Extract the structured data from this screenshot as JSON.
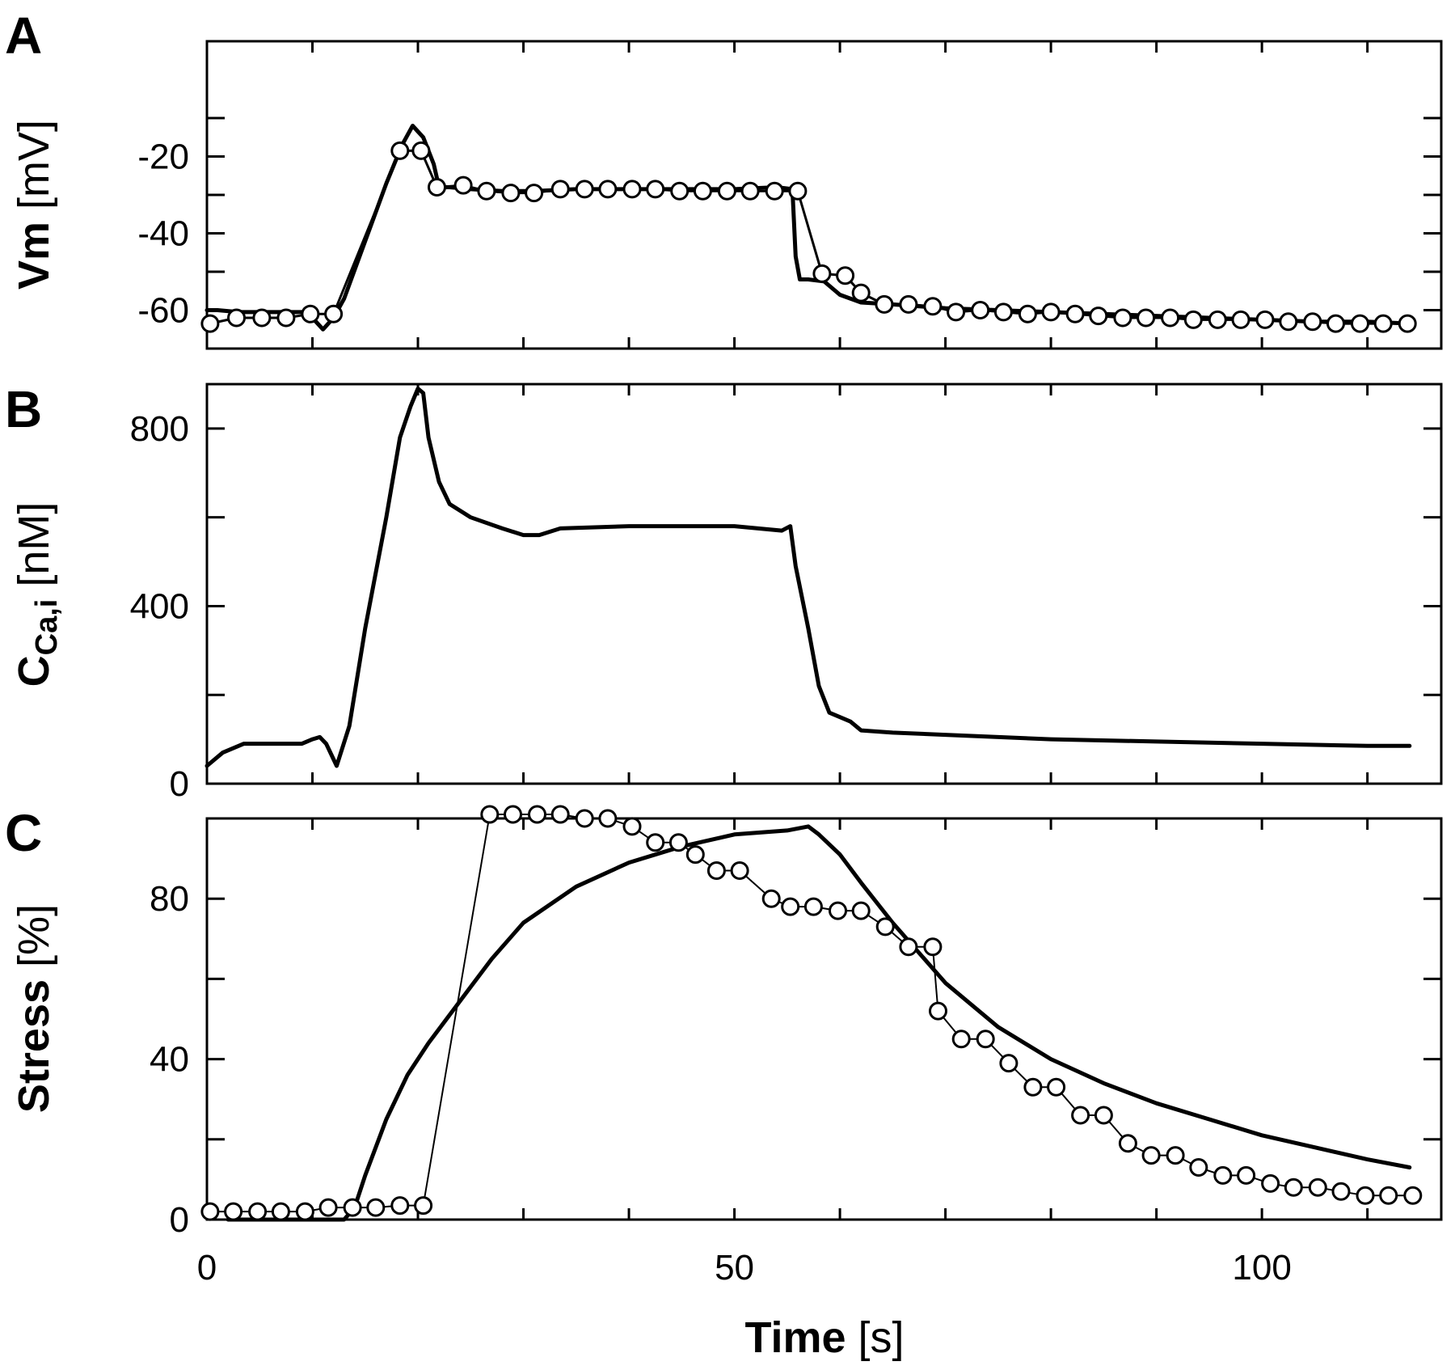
{
  "chart_data": [
    {
      "type": "line",
      "panel": "A",
      "ylabel": "Vm",
      "yunit": "[mV]",
      "xlabel": "",
      "xlim": [
        0,
        117
      ],
      "ylim": [
        -70,
        10
      ],
      "yticks": [
        -20,
        -40,
        -60
      ],
      "yticks_minor": [
        -10,
        -30,
        -50,
        -70
      ],
      "grid": false,
      "series": [
        {
          "name": "Vm (line)",
          "style": "thick-line",
          "x": [
            0,
            1,
            3,
            5,
            7,
            9,
            10,
            11,
            12,
            13,
            15,
            17,
            18.5,
            19.5,
            20.5,
            21.5,
            22,
            23,
            25,
            28,
            31,
            35,
            40,
            45,
            50,
            54,
            55.5,
            55.8,
            56.2,
            57,
            58.5,
            60,
            62,
            65,
            70,
            75,
            80,
            85,
            90,
            95,
            100,
            105,
            110,
            114
          ],
          "y": [
            -60,
            -60,
            -60.5,
            -60.5,
            -60.5,
            -60.5,
            -62,
            -65,
            -62,
            -57,
            -42,
            -27,
            -17,
            -12,
            -15,
            -22,
            -28,
            -28,
            -28.5,
            -29,
            -29,
            -28.5,
            -28.5,
            -28.5,
            -28.5,
            -28,
            -28.5,
            -46,
            -52,
            -52,
            -52.5,
            -56,
            -58,
            -58.5,
            -59.5,
            -60,
            -60.5,
            -61,
            -61.5,
            -62,
            -62.5,
            -63,
            -63,
            -63.5
          ]
        },
        {
          "name": "Vm (measured)",
          "style": "open-circles",
          "x": [
            0.3,
            2.8,
            5.2,
            7.5,
            9.8,
            12.0,
            18.3,
            20.3,
            21.8,
            24.3,
            26.5,
            28.8,
            31.0,
            33.5,
            35.8,
            38.0,
            40.3,
            42.5,
            44.8,
            47.0,
            49.3,
            51.5,
            53.8,
            56.0,
            58.3,
            60.5,
            62.0,
            64.2,
            66.5,
            68.8,
            71.0,
            73.3,
            75.5,
            77.8,
            80.0,
            82.3,
            84.5,
            86.8,
            89.0,
            91.3,
            93.5,
            95.8,
            98.0,
            100.3,
            102.5,
            104.8,
            107.0,
            109.3,
            111.5,
            113.8
          ],
          "y": [
            -63.5,
            -62,
            -62,
            -62,
            -61,
            -61,
            -18.5,
            -18.5,
            -28,
            -27.5,
            -29,
            -29.5,
            -29.5,
            -28.5,
            -28.5,
            -28.5,
            -28.5,
            -28.5,
            -29,
            -29,
            -29,
            -29,
            -29,
            -29,
            -50.5,
            -51,
            -55.5,
            -58.5,
            -58.5,
            -59,
            -60.5,
            -60,
            -60.5,
            -61,
            -60.5,
            -61,
            -61.5,
            -62,
            -62,
            -62,
            -62.5,
            -62.5,
            -62.5,
            -62.5,
            -63,
            -63,
            -63.5,
            -63.5,
            -63.5,
            -63.5
          ]
        }
      ],
      "text": {
        "letter": "A",
        "ytick_labels": [
          "-20",
          "-40",
          "-60"
        ]
      }
    },
    {
      "type": "line",
      "panel": "B",
      "ylabel": "C",
      "ylabel_subscript": "Ca,i",
      "yunit": "[nM]",
      "xlabel": "",
      "xlim": [
        0,
        117
      ],
      "ylim": [
        0,
        900
      ],
      "yticks": [
        0,
        400,
        800
      ],
      "yticks_minor": [
        200,
        600
      ],
      "grid": false,
      "series": [
        {
          "name": "Ca concentration (model)",
          "style": "thick-line",
          "x": [
            0,
            1.5,
            3.5,
            5,
            7,
            9,
            10,
            10.7,
            11.3,
            12.3,
            13.5,
            15,
            17,
            18.3,
            19.3,
            20,
            20.5,
            21,
            22,
            23,
            25,
            28,
            30,
            31.5,
            33.5,
            40,
            50,
            54.5,
            55.3,
            55.8,
            57,
            58,
            59,
            60,
            61,
            62,
            65,
            70,
            80,
            90,
            100,
            110,
            114
          ],
          "y": [
            40,
            70,
            90,
            90,
            90,
            90,
            100,
            105,
            90,
            40,
            130,
            350,
            600,
            780,
            850,
            890,
            880,
            780,
            680,
            630,
            600,
            575,
            560,
            560,
            575,
            580,
            580,
            570,
            580,
            490,
            350,
            220,
            160,
            150,
            140,
            120,
            115,
            110,
            100,
            95,
            90,
            85,
            85
          ]
        }
      ],
      "text": {
        "letter": "B",
        "ytick_labels": [
          "0",
          "400",
          "800"
        ]
      }
    },
    {
      "type": "line",
      "panel": "C",
      "ylabel": "Stress",
      "yunit": "[%]",
      "xlabel": "Time",
      "xunit": "[s]",
      "xlim": [
        0,
        117
      ],
      "ylim": [
        0,
        100
      ],
      "xticks": [
        0,
        50,
        100
      ],
      "xticks_minor": [
        10,
        20,
        30,
        40,
        60,
        70,
        80,
        90,
        110
      ],
      "yticks": [
        0,
        40,
        80
      ],
      "yticks_minor": [
        20,
        60
      ],
      "grid": false,
      "series": [
        {
          "name": "Stress (model)",
          "style": "thick-line",
          "x": [
            2,
            13,
            14,
            15,
            17,
            19,
            21,
            23,
            25,
            27,
            30,
            35,
            40,
            45,
            50,
            55,
            57,
            58,
            60,
            62,
            65,
            70,
            75,
            80,
            85,
            90,
            95,
            100,
            105,
            110,
            114
          ],
          "y": [
            0,
            0,
            3,
            11,
            25,
            36,
            44,
            51,
            58,
            65,
            74,
            83,
            89,
            93,
            96,
            97,
            98,
            96,
            91,
            84,
            74,
            59,
            48,
            40,
            34,
            29,
            25,
            21,
            18,
            15,
            13
          ]
        },
        {
          "name": "Stress (measured)",
          "style": "open-circles-thin-line",
          "x": [
            0.3,
            2.5,
            4.8,
            7.0,
            9.3,
            11.5,
            13.8,
            16.0,
            18.3,
            20.5,
            26.8,
            29.0,
            31.3,
            33.5,
            35.8,
            38.0,
            40.3,
            42.5,
            44.7,
            46.3,
            48.3,
            50.5,
            53.5,
            55.3,
            57.5,
            59.8,
            62.0,
            64.3,
            66.5,
            68.8,
            69.3,
            71.5,
            73.8,
            76.0,
            78.3,
            80.5,
            82.8,
            85.0,
            87.3,
            89.5,
            91.8,
            94.0,
            96.3,
            98.5,
            100.8,
            103.0,
            105.3,
            107.5,
            109.8,
            112.0,
            114.3
          ],
          "y": [
            2,
            2,
            2,
            2,
            2,
            3,
            3,
            3,
            3.5,
            3.5,
            101,
            101,
            101,
            101,
            100,
            100,
            98,
            94,
            94,
            91,
            87,
            87,
            80,
            78,
            78,
            77,
            77,
            73,
            68,
            68,
            52,
            45,
            45,
            39,
            33,
            33,
            26,
            26,
            19,
            16,
            16,
            13,
            11,
            11,
            9,
            8,
            8,
            7,
            6,
            6,
            6
          ]
        }
      ],
      "text": {
        "letter": "C",
        "xtick_labels": [
          "0",
          "50",
          "100"
        ],
        "ytick_labels": [
          "0",
          "40",
          "80"
        ]
      }
    }
  ]
}
